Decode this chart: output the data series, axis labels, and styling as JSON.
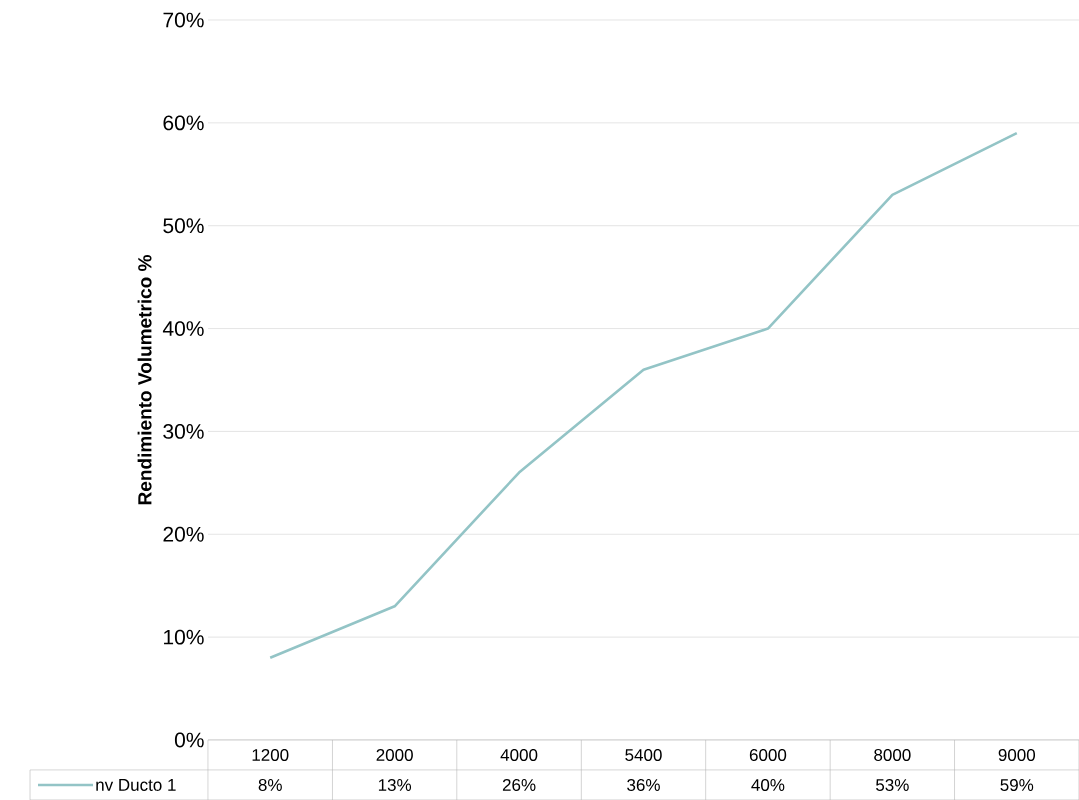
{
  "chart_data": {
    "type": "line",
    "ylabel": "Rendimiento Volumetrico  %",
    "categories": [
      "1200",
      "2000",
      "4000",
      "5400",
      "6000",
      "8000",
      "9000"
    ],
    "series": [
      {
        "name": "nv Ducto 1",
        "color": "#93c4c6",
        "values": [
          8,
          13,
          26,
          36,
          40,
          53,
          59
        ],
        "value_labels": [
          "8%",
          "13%",
          "26%",
          "36%",
          "40%",
          "53%",
          "59%"
        ]
      }
    ],
    "ylim": [
      0,
      70
    ],
    "yticks": [
      {
        "value": 0,
        "label": "0%"
      },
      {
        "value": 10,
        "label": "10%"
      },
      {
        "value": 20,
        "label": "20%"
      },
      {
        "value": 30,
        "label": "30%"
      },
      {
        "value": 40,
        "label": "40%"
      },
      {
        "value": 50,
        "label": "50%"
      },
      {
        "value": 60,
        "label": "60%"
      },
      {
        "value": 70,
        "label": "70%"
      }
    ],
    "grid": "y",
    "legend": "bottom left",
    "marker": "none",
    "line_style": "solid"
  }
}
